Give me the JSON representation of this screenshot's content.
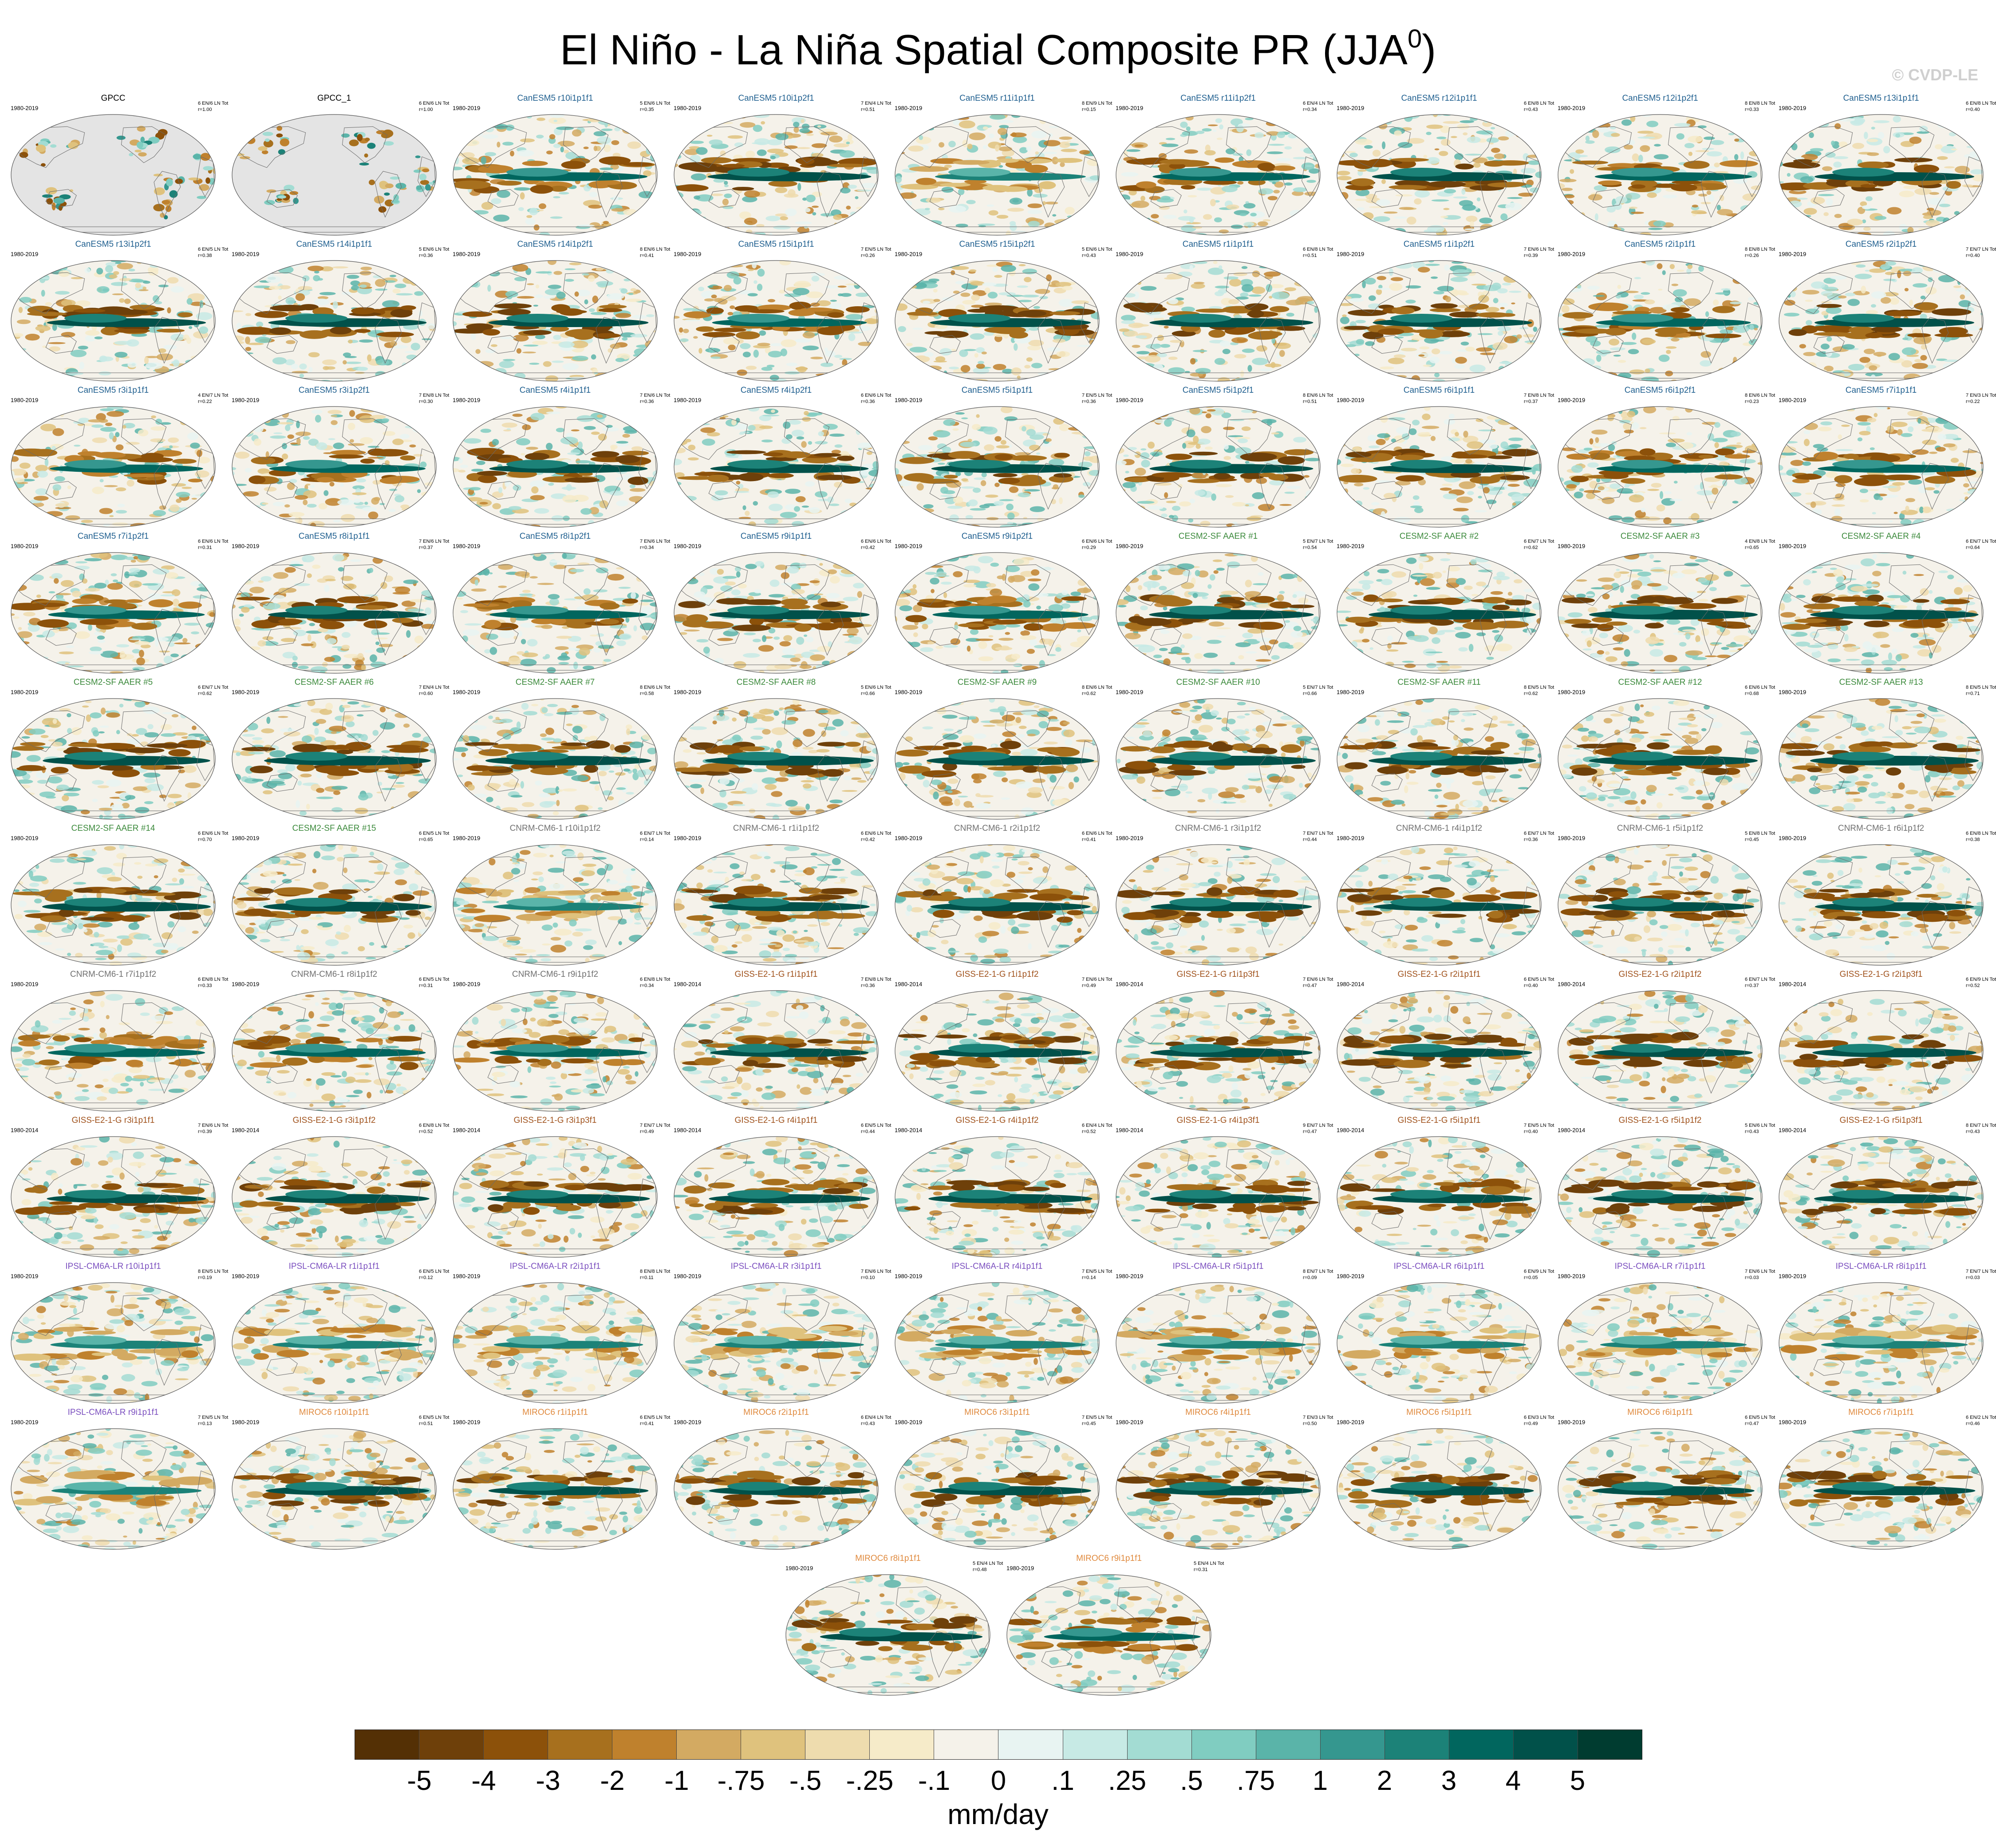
{
  "figure": {
    "title": "El Niño - La Niña Spatial Composite PR (JJA",
    "title_superscript": "0",
    "title_close": ")",
    "credit": "© CVDP-LE",
    "units": "mm/day"
  },
  "colorbar": {
    "labels": [
      "-5",
      "-4",
      "-3",
      "-2",
      "-1",
      "-.75",
      "-.5",
      "-.25",
      "-.1",
      "0",
      ".1",
      ".25",
      ".5",
      ".75",
      "1",
      "2",
      "3",
      "4",
      "5"
    ],
    "colors": [
      "#543005",
      "#6e400a",
      "#8c510a",
      "#a7701e",
      "#bf812d",
      "#d3aa62",
      "#dfc27d",
      "#eedcae",
      "#f6ebc9",
      "#f5f2ea",
      "#e8f4f2",
      "#c7eae5",
      "#a3dcd3",
      "#80cdc1",
      "#5ab4a9",
      "#35978f",
      "#1c8278",
      "#01665e",
      "#01514a",
      "#003c30"
    ]
  },
  "groups": {
    "obs": "#000000",
    "CanESM5": "#1f5f8f",
    "CESM2-SF-AAER": "#3c8a3c",
    "CNRM-CM6-1": "#707070",
    "GISS-E2-1-G": "#a0521c",
    "IPSL-CM6A-LR": "#7b4fbf",
    "MIROC6": "#e08a3e"
  },
  "panels": [
    {
      "title": "GPCC",
      "period": "1980-2019",
      "count": "6 EN/6 LN Tot",
      "r": "r=1.00",
      "group": "obs",
      "obs": true
    },
    {
      "title": "GPCC_1",
      "period": "",
      "count": "6 EN/6 LN Tot",
      "r": "r=1.00",
      "group": "obs",
      "obs": true
    },
    {
      "title": "CanESM5 r10i1p1f1",
      "period": "1980-2019",
      "count": "5 EN/6 LN Tot",
      "r": "r=0.35",
      "group": "CanESM5"
    },
    {
      "title": "CanESM5 r10i1p2f1",
      "period": "1980-2019",
      "count": "7 EN/4 LN Tot",
      "r": "r=0.51",
      "group": "CanESM5"
    },
    {
      "title": "CanESM5 r11i1p1f1",
      "period": "1980-2019",
      "count": "8 EN/9 LN Tot",
      "r": "r=0.15",
      "group": "CanESM5"
    },
    {
      "title": "CanESM5 r11i1p2f1",
      "period": "1980-2019",
      "count": "6 EN/4 LN Tot",
      "r": "r=0.34",
      "group": "CanESM5"
    },
    {
      "title": "CanESM5 r12i1p1f1",
      "period": "1980-2019",
      "count": "6 EN/8 LN Tot",
      "r": "r=0.43",
      "group": "CanESM5"
    },
    {
      "title": "CanESM5 r12i1p2f1",
      "period": "1980-2019",
      "count": "8 EN/8 LN Tot",
      "r": "r=0.33",
      "group": "CanESM5"
    },
    {
      "title": "CanESM5 r13i1p1f1",
      "period": "1980-2019",
      "count": "6 EN/8 LN Tot",
      "r": "r=0.40",
      "group": "CanESM5"
    },
    {
      "title": "CanESM5 r13i1p2f1",
      "period": "1980-2019",
      "count": "6 EN/5 LN Tot",
      "r": "r=0.38",
      "group": "CanESM5"
    },
    {
      "title": "CanESM5 r14i1p1f1",
      "period": "1980-2019",
      "count": "5 EN/6 LN Tot",
      "r": "r=0.36",
      "group": "CanESM5"
    },
    {
      "title": "CanESM5 r14i1p2f1",
      "period": "1980-2019",
      "count": "8 EN/6 LN Tot",
      "r": "r=0.41",
      "group": "CanESM5"
    },
    {
      "title": "CanESM5 r15i1p1f1",
      "period": "1980-2019",
      "count": "7 EN/5 LN Tot",
      "r": "r=0.26",
      "group": "CanESM5"
    },
    {
      "title": "CanESM5 r15i1p2f1",
      "period": "1980-2019",
      "count": "5 EN/6 LN Tot",
      "r": "r=0.43",
      "group": "CanESM5"
    },
    {
      "title": "CanESM5 r1i1p1f1",
      "period": "1980-2019",
      "count": "6 EN/8 LN Tot",
      "r": "r=0.51",
      "group": "CanESM5"
    },
    {
      "title": "CanESM5 r1i1p2f1",
      "period": "1980-2019",
      "count": "7 EN/6 LN Tot",
      "r": "r=0.39",
      "group": "CanESM5"
    },
    {
      "title": "CanESM5 r2i1p1f1",
      "period": "1980-2019",
      "count": "8 EN/8 LN Tot",
      "r": "r=0.26",
      "group": "CanESM5"
    },
    {
      "title": "CanESM5 r2i1p2f1",
      "period": "1980-2019",
      "count": "7 EN/7 LN Tot",
      "r": "r=0.40",
      "group": "CanESM5"
    },
    {
      "title": "CanESM5 r3i1p1f1",
      "period": "1980-2019",
      "count": "4 EN/7 LN Tot",
      "r": "r=0.22",
      "group": "CanESM5"
    },
    {
      "title": "CanESM5 r3i1p2f1",
      "period": "1980-2019",
      "count": "7 EN/8 LN Tot",
      "r": "r=0.30",
      "group": "CanESM5"
    },
    {
      "title": "CanESM5 r4i1p1f1",
      "period": "1980-2019",
      "count": "7 EN/6 LN Tot",
      "r": "r=0.36",
      "group": "CanESM5"
    },
    {
      "title": "CanESM5 r4i1p2f1",
      "period": "1980-2019",
      "count": "6 EN/6 LN Tot",
      "r": "r=0.36",
      "group": "CanESM5"
    },
    {
      "title": "CanESM5 r5i1p1f1",
      "period": "1980-2019",
      "count": "7 EN/5 LN Tot",
      "r": "r=0.36",
      "group": "CanESM5"
    },
    {
      "title": "CanESM5 r5i1p2f1",
      "period": "1980-2019",
      "count": "8 EN/6 LN Tot",
      "r": "r=0.51",
      "group": "CanESM5"
    },
    {
      "title": "CanESM5 r6i1p1f1",
      "period": "1980-2019",
      "count": "7 EN/8 LN Tot",
      "r": "r=0.37",
      "group": "CanESM5"
    },
    {
      "title": "CanESM5 r6i1p2f1",
      "period": "1980-2019",
      "count": "8 EN/6 LN Tot",
      "r": "r=0.23",
      "group": "CanESM5"
    },
    {
      "title": "CanESM5 r7i1p1f1",
      "period": "1980-2019",
      "count": "7 EN/3 LN Tot",
      "r": "r=0.22",
      "group": "CanESM5"
    },
    {
      "title": "CanESM5 r7i1p2f1",
      "period": "1980-2019",
      "count": "6 EN/6 LN Tot",
      "r": "r=0.31",
      "group": "CanESM5"
    },
    {
      "title": "CanESM5 r8i1p1f1",
      "period": "1980-2019",
      "count": "7 EN/6 LN Tot",
      "r": "r=0.37",
      "group": "CanESM5"
    },
    {
      "title": "CanESM5 r8i1p2f1",
      "period": "1980-2019",
      "count": "7 EN/6 LN Tot",
      "r": "r=0.34",
      "group": "CanESM5"
    },
    {
      "title": "CanESM5 r9i1p1f1",
      "period": "1980-2019",
      "count": "6 EN/6 LN Tot",
      "r": "r=0.42",
      "group": "CanESM5"
    },
    {
      "title": "CanESM5 r9i1p2f1",
      "period": "1980-2019",
      "count": "6 EN/6 LN Tot",
      "r": "r=0.29",
      "group": "CanESM5"
    },
    {
      "title": "CESM2-SF AAER #1",
      "period": "1980-2019",
      "count": "5 EN/7 LN Tot",
      "r": "r=0.54",
      "group": "CESM2-SF-AAER"
    },
    {
      "title": "CESM2-SF AAER #2",
      "period": "1980-2019",
      "count": "6 EN/7 LN Tot",
      "r": "r=0.62",
      "group": "CESM2-SF-AAER"
    },
    {
      "title": "CESM2-SF AAER #3",
      "period": "1980-2019",
      "count": "4 EN/8 LN Tot",
      "r": "r=0.65",
      "group": "CESM2-SF-AAER"
    },
    {
      "title": "CESM2-SF AAER #4",
      "period": "1980-2019",
      "count": "6 EN/7 LN Tot",
      "r": "r=0.64",
      "group": "CESM2-SF-AAER"
    },
    {
      "title": "CESM2-SF AAER #5",
      "period": "1980-2019",
      "count": "6 EN/7 LN Tot",
      "r": "r=0.62",
      "group": "CESM2-SF-AAER"
    },
    {
      "title": "CESM2-SF AAER #6",
      "period": "1980-2019",
      "count": "7 EN/4 LN Tot",
      "r": "r=0.60",
      "group": "CESM2-SF-AAER"
    },
    {
      "title": "CESM2-SF AAER #7",
      "period": "1980-2019",
      "count": "8 EN/6 LN Tot",
      "r": "r=0.58",
      "group": "CESM2-SF-AAER"
    },
    {
      "title": "CESM2-SF AAER #8",
      "period": "1980-2019",
      "count": "5 EN/6 LN Tot",
      "r": "r=0.66",
      "group": "CESM2-SF-AAER"
    },
    {
      "title": "CESM2-SF AAER #9",
      "period": "1980-2019",
      "count": "8 EN/6 LN Tot",
      "r": "r=0.62",
      "group": "CESM2-SF-AAER"
    },
    {
      "title": "CESM2-SF AAER #10",
      "period": "1980-2019",
      "count": "5 EN/7 LN Tot",
      "r": "r=0.66",
      "group": "CESM2-SF-AAER"
    },
    {
      "title": "CESM2-SF AAER #11",
      "period": "1980-2019",
      "count": "8 EN/5 LN Tot",
      "r": "r=0.62",
      "group": "CESM2-SF-AAER"
    },
    {
      "title": "CESM2-SF AAER #12",
      "period": "1980-2019",
      "count": "6 EN/6 LN Tot",
      "r": "r=0.68",
      "group": "CESM2-SF-AAER"
    },
    {
      "title": "CESM2-SF AAER #13",
      "period": "1980-2019",
      "count": "8 EN/5 LN Tot",
      "r": "r=0.71",
      "group": "CESM2-SF-AAER"
    },
    {
      "title": "CESM2-SF AAER #14",
      "period": "1980-2019",
      "count": "6 EN/6 LN Tot",
      "r": "r=0.70",
      "group": "CESM2-SF-AAER"
    },
    {
      "title": "CESM2-SF AAER #15",
      "period": "1980-2019",
      "count": "6 EN/5 LN Tot",
      "r": "r=0.65",
      "group": "CESM2-SF-AAER"
    },
    {
      "title": "CNRM-CM6-1 r10i1p1f2",
      "period": "1980-2019",
      "count": "6 EN/7 LN Tot",
      "r": "r=0.14",
      "group": "CNRM-CM6-1"
    },
    {
      "title": "CNRM-CM6-1 r1i1p1f2",
      "period": "1980-2019",
      "count": "6 EN/6 LN Tot",
      "r": "r=0.42",
      "group": "CNRM-CM6-1"
    },
    {
      "title": "CNRM-CM6-1 r2i1p1f2",
      "period": "1980-2019",
      "count": "6 EN/6 LN Tot",
      "r": "r=0.41",
      "group": "CNRM-CM6-1"
    },
    {
      "title": "CNRM-CM6-1 r3i1p1f2",
      "period": "1980-2019",
      "count": "7 EN/7 LN Tot",
      "r": "r=0.44",
      "group": "CNRM-CM6-1"
    },
    {
      "title": "CNRM-CM6-1 r4i1p1f2",
      "period": "1980-2019",
      "count": "6 EN/7 LN Tot",
      "r": "r=0.36",
      "group": "CNRM-CM6-1"
    },
    {
      "title": "CNRM-CM6-1 r5i1p1f2",
      "period": "1980-2019",
      "count": "5 EN/8 LN Tot",
      "r": "r=0.45",
      "group": "CNRM-CM6-1"
    },
    {
      "title": "CNRM-CM6-1 r6i1p1f2",
      "period": "1980-2019",
      "count": "6 EN/8 LN Tot",
      "r": "r=0.38",
      "group": "CNRM-CM6-1"
    },
    {
      "title": "CNRM-CM6-1 r7i1p1f2",
      "period": "1980-2019",
      "count": "6 EN/8 LN Tot",
      "r": "r=0.33",
      "group": "CNRM-CM6-1"
    },
    {
      "title": "CNRM-CM6-1 r8i1p1f2",
      "period": "1980-2019",
      "count": "6 EN/5 LN Tot",
      "r": "r=0.31",
      "group": "CNRM-CM6-1"
    },
    {
      "title": "CNRM-CM6-1 r9i1p1f2",
      "period": "1980-2019",
      "count": "6 EN/8 LN Tot",
      "r": "r=0.34",
      "group": "CNRM-CM6-1"
    },
    {
      "title": "GISS-E2-1-G r1i1p1f1",
      "period": "1980-2014",
      "count": "7 EN/8 LN Tot",
      "r": "r=0.36",
      "group": "GISS-E2-1-G"
    },
    {
      "title": "GISS-E2-1-G r1i1p1f2",
      "period": "1980-2014",
      "count": "7 EN/6 LN Tot",
      "r": "r=0.49",
      "group": "GISS-E2-1-G"
    },
    {
      "title": "GISS-E2-1-G r1i1p3f1",
      "period": "1980-2014",
      "count": "7 EN/6 LN Tot",
      "r": "r=0.47",
      "group": "GISS-E2-1-G"
    },
    {
      "title": "GISS-E2-1-G r2i1p1f1",
      "period": "1980-2014",
      "count": "6 EN/5 LN Tot",
      "r": "r=0.40",
      "group": "GISS-E2-1-G"
    },
    {
      "title": "GISS-E2-1-G r2i1p1f2",
      "period": "1980-2014",
      "count": "6 EN/7 LN Tot",
      "r": "r=0.37",
      "group": "GISS-E2-1-G"
    },
    {
      "title": "GISS-E2-1-G r2i1p3f1",
      "period": "1980-2014",
      "count": "6 EN/9 LN Tot",
      "r": "r=0.52",
      "group": "GISS-E2-1-G"
    },
    {
      "title": "GISS-E2-1-G r3i1p1f1",
      "period": "1980-2014",
      "count": "7 EN/6 LN Tot",
      "r": "r=0.39",
      "group": "GISS-E2-1-G"
    },
    {
      "title": "GISS-E2-1-G r3i1p1f2",
      "period": "1980-2014",
      "count": "6 EN/8 LN Tot",
      "r": "r=0.52",
      "group": "GISS-E2-1-G"
    },
    {
      "title": "GISS-E2-1-G r3i1p3f1",
      "period": "1980-2014",
      "count": "7 EN/7 LN Tot",
      "r": "r=0.49",
      "group": "GISS-E2-1-G"
    },
    {
      "title": "GISS-E2-1-G r4i1p1f1",
      "period": "1980-2014",
      "count": "6 EN/5 LN Tot",
      "r": "r=0.44",
      "group": "GISS-E2-1-G"
    },
    {
      "title": "GISS-E2-1-G r4i1p1f2",
      "period": "1980-2014",
      "count": "6 EN/4 LN Tot",
      "r": "r=0.52",
      "group": "GISS-E2-1-G"
    },
    {
      "title": "GISS-E2-1-G r4i1p3f1",
      "period": "1980-2014",
      "count": "9 EN/7 LN Tot",
      "r": "r=0.47",
      "group": "GISS-E2-1-G"
    },
    {
      "title": "GISS-E2-1-G r5i1p1f1",
      "period": "1980-2014",
      "count": "7 EN/5 LN Tot",
      "r": "r=0.40",
      "group": "GISS-E2-1-G"
    },
    {
      "title": "GISS-E2-1-G r5i1p1f2",
      "period": "1980-2014",
      "count": "5 EN/6 LN Tot",
      "r": "r=0.43",
      "group": "GISS-E2-1-G"
    },
    {
      "title": "GISS-E2-1-G r5i1p3f1",
      "period": "1980-2014",
      "count": "8 EN/7 LN Tot",
      "r": "r=0.43",
      "group": "GISS-E2-1-G"
    },
    {
      "title": "IPSL-CM6A-LR r10i1p1f1",
      "period": "1980-2019",
      "count": "8 EN/5 LN Tot",
      "r": "r=0.19",
      "group": "IPSL-CM6A-LR"
    },
    {
      "title": "IPSL-CM6A-LR r1i1p1f1",
      "period": "1980-2019",
      "count": "6 EN/5 LN Tot",
      "r": "r=0.12",
      "group": "IPSL-CM6A-LR"
    },
    {
      "title": "IPSL-CM6A-LR r2i1p1f1",
      "period": "1980-2019",
      "count": "8 EN/8 LN Tot",
      "r": "r=0.11",
      "group": "IPSL-CM6A-LR"
    },
    {
      "title": "IPSL-CM6A-LR r3i1p1f1",
      "period": "1980-2019",
      "count": "7 EN/6 LN Tot",
      "r": "r=0.10",
      "group": "IPSL-CM6A-LR"
    },
    {
      "title": "IPSL-CM6A-LR r4i1p1f1",
      "period": "1980-2019",
      "count": "7 EN/5 LN Tot",
      "r": "r=0.14",
      "group": "IPSL-CM6A-LR"
    },
    {
      "title": "IPSL-CM6A-LR r5i1p1f1",
      "period": "1980-2019",
      "count": "8 EN/7 LN Tot",
      "r": "r=0.09",
      "group": "IPSL-CM6A-LR"
    },
    {
      "title": "IPSL-CM6A-LR r6i1p1f1",
      "period": "1980-2019",
      "count": "6 EN/9 LN Tot",
      "r": "r=0.05",
      "group": "IPSL-CM6A-LR"
    },
    {
      "title": "IPSL-CM6A-LR r7i1p1f1",
      "period": "1980-2019",
      "count": "7 EN/6 LN Tot",
      "r": "r=0.03",
      "group": "IPSL-CM6A-LR"
    },
    {
      "title": "IPSL-CM6A-LR r8i1p1f1",
      "period": "1980-2019",
      "count": "7 EN/7 LN Tot",
      "r": "r=0.03",
      "group": "IPSL-CM6A-LR"
    },
    {
      "title": "IPSL-CM6A-LR r9i1p1f1",
      "period": "1980-2019",
      "count": "7 EN/5 LN Tot",
      "r": "r=0.13",
      "group": "IPSL-CM6A-LR"
    },
    {
      "title": "MIROC6 r10i1p1f1",
      "period": "1980-2019",
      "count": "6 EN/5 LN Tot",
      "r": "r=0.51",
      "group": "MIROC6"
    },
    {
      "title": "MIROC6 r1i1p1f1",
      "period": "1980-2019",
      "count": "6 EN/5 LN Tot",
      "r": "r=0.41",
      "group": "MIROC6"
    },
    {
      "title": "MIROC6 r2i1p1f1",
      "period": "1980-2019",
      "count": "6 EN/4 LN Tot",
      "r": "r=0.43",
      "group": "MIROC6"
    },
    {
      "title": "MIROC6 r3i1p1f1",
      "period": "1980-2019",
      "count": "7 EN/5 LN Tot",
      "r": "r=0.45",
      "group": "MIROC6"
    },
    {
      "title": "MIROC6 r4i1p1f1",
      "period": "1980-2019",
      "count": "7 EN/3 LN Tot",
      "r": "r=0.50",
      "group": "MIROC6"
    },
    {
      "title": "MIROC6 r5i1p1f1",
      "period": "1980-2019",
      "count": "6 EN/3 LN Tot",
      "r": "r=0.49",
      "group": "MIROC6"
    },
    {
      "title": "MIROC6 r6i1p1f1",
      "period": "1980-2019",
      "count": "6 EN/5 LN Tot",
      "r": "r=0.47",
      "group": "MIROC6"
    },
    {
      "title": "MIROC6 r7i1p1f1",
      "period": "1980-2019",
      "count": "6 EN/2 LN Tot",
      "r": "r=0.46",
      "group": "MIROC6"
    },
    {
      "title": "MIROC6 r8i1p1f1",
      "period": "1980-2019",
      "count": "5 EN/4 LN Tot",
      "r": "r=0.48",
      "group": "MIROC6"
    },
    {
      "title": "MIROC6 r9i1p1f1",
      "period": "1980-2019",
      "count": "5 EN/4 LN Tot",
      "r": "r=0.31",
      "group": "MIROC6"
    }
  ]
}
